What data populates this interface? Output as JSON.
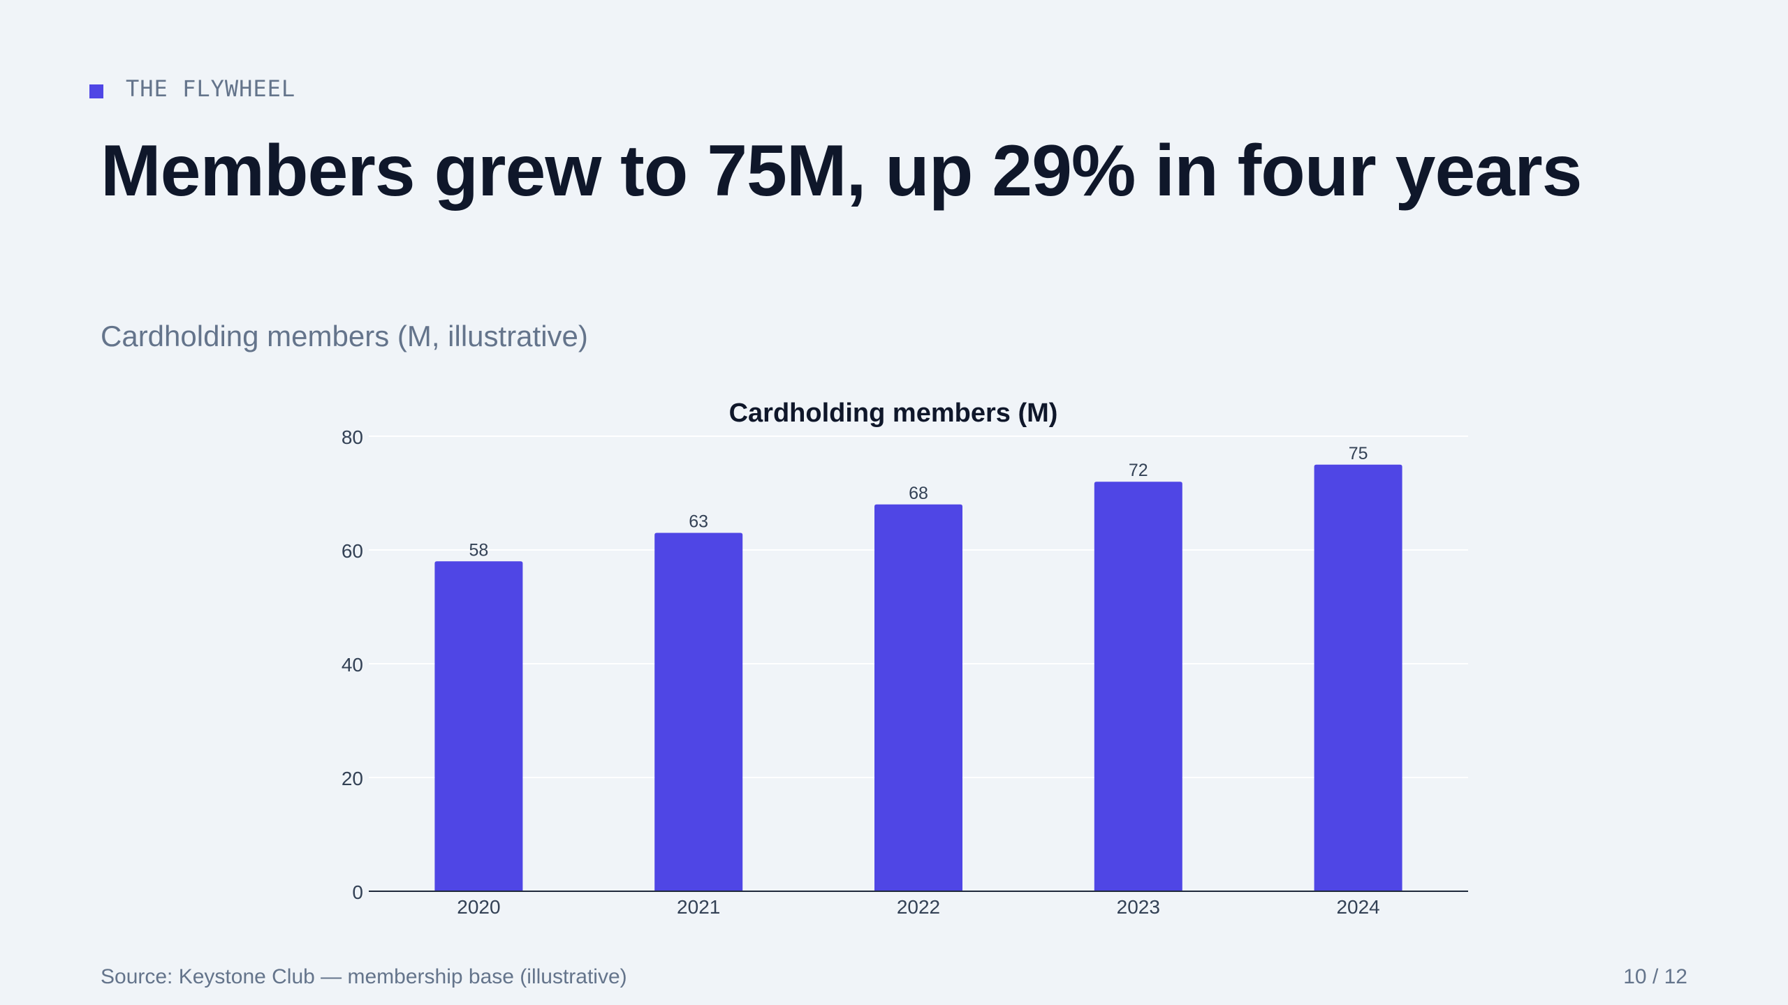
{
  "slide": {
    "eyebrow": "THE FLYWHEEL",
    "title": "Members grew to 75M, up 29% in four years",
    "subtitle": "Cardholding members (M, illustrative)",
    "source": "Source: Keystone Club — membership base (illustrative)",
    "page": "10 / 12"
  },
  "colors": {
    "accent": "#4f46e5",
    "title": "#0f172a",
    "muted": "#64748b",
    "background": "#f0f4f8"
  },
  "chart_data": {
    "type": "bar",
    "title": "Cardholding members (M)",
    "categories": [
      "2020",
      "2021",
      "2022",
      "2023",
      "2024"
    ],
    "values": [
      58,
      63,
      68,
      72,
      75
    ],
    "ylim": [
      0,
      80
    ],
    "yticks": [
      0,
      20,
      40,
      60,
      80
    ],
    "grid": true,
    "data_labels": true
  }
}
